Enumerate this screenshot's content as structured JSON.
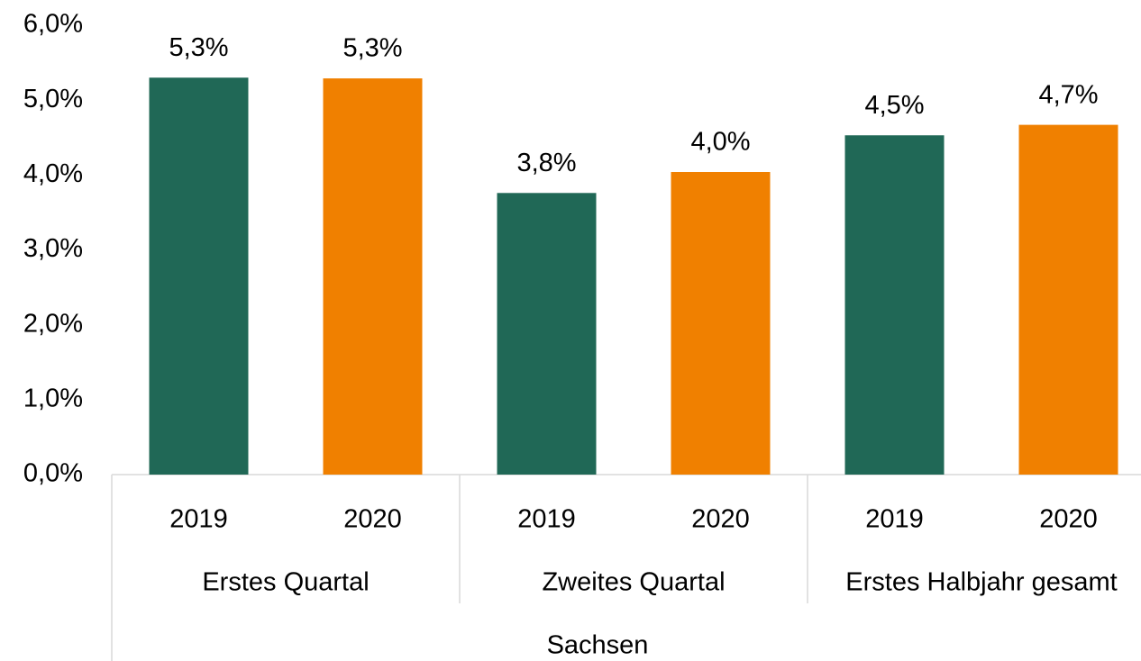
{
  "chart_data": {
    "type": "bar",
    "categories": [
      "Erstes Quartal",
      "Zweites Quartal",
      "Erstes Halbjahr gesamt"
    ],
    "group_label": "Sachsen",
    "series": [
      {
        "name": "2019",
        "color": "#206856",
        "values": [
          5.3,
          3.76,
          4.53
        ],
        "value_labels": [
          "5,3%",
          "3,8%",
          "4,5%"
        ]
      },
      {
        "name": "2020",
        "color": "#f08000",
        "values": [
          5.29,
          4.04,
          4.67
        ],
        "value_labels": [
          "5,3%",
          "4,0%",
          "4,7%"
        ]
      }
    ],
    "ylim": [
      0,
      6
    ],
    "yticks": [
      {
        "value": 0,
        "label": "0,0%"
      },
      {
        "value": 1,
        "label": "1,0%"
      },
      {
        "value": 2,
        "label": "2,0%"
      },
      {
        "value": 3,
        "label": "3,0%"
      },
      {
        "value": 4,
        "label": "4,0%"
      },
      {
        "value": 5,
        "label": "5,0%"
      },
      {
        "value": 6,
        "label": "6,0%"
      }
    ],
    "grid": false
  }
}
